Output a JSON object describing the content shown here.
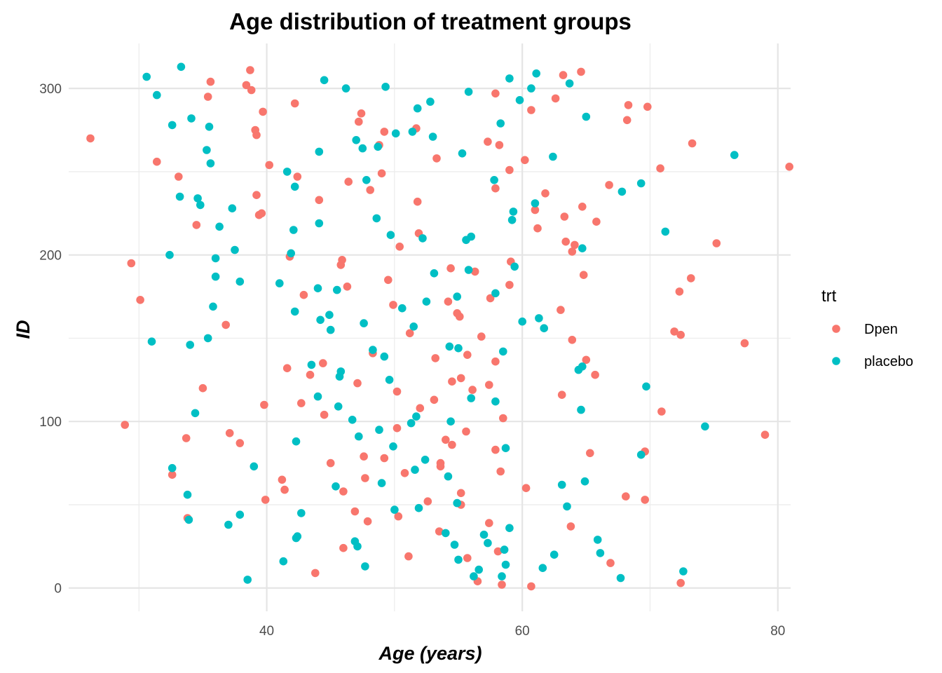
{
  "chart_data": {
    "type": "scatter",
    "title": "Age distribution of treatment groups",
    "xlabel": "Age (years)",
    "ylabel": "ID",
    "xlim": [
      24.5,
      81.0
    ],
    "ylim": [
      -14,
      327
    ],
    "x_ticks": [
      40,
      60,
      80
    ],
    "y_ticks": [
      0,
      100,
      200,
      300
    ],
    "x_minor_ticks": [
      30,
      50,
      70
    ],
    "y_minor_ticks": [
      50,
      150,
      250
    ],
    "grid": true,
    "legend": {
      "title": "trt",
      "placement": "right"
    },
    "series": [
      {
        "name": "Dpen",
        "color": "#F8766D",
        "points": [
          [
            26.2,
            270
          ],
          [
            28.9,
            98
          ],
          [
            29.4,
            195
          ],
          [
            30.1,
            173
          ],
          [
            31.4,
            256
          ],
          [
            32.6,
            68
          ],
          [
            33.1,
            247
          ],
          [
            33.7,
            90
          ],
          [
            33.8,
            42
          ],
          [
            35.0,
            120
          ],
          [
            34.5,
            218
          ],
          [
            35.4,
            295
          ],
          [
            35.6,
            304
          ],
          [
            36.8,
            158
          ],
          [
            37.1,
            93
          ],
          [
            37.9,
            87
          ],
          [
            38.4,
            302
          ],
          [
            38.7,
            311
          ],
          [
            38.8,
            299
          ],
          [
            39.1,
            275
          ],
          [
            39.2,
            272
          ],
          [
            39.2,
            236
          ],
          [
            39.4,
            224
          ],
          [
            39.6,
            225
          ],
          [
            39.7,
            286
          ],
          [
            39.8,
            110
          ],
          [
            39.9,
            53
          ],
          [
            40.2,
            254
          ],
          [
            41.2,
            65
          ],
          [
            41.4,
            59
          ],
          [
            41.6,
            132
          ],
          [
            41.8,
            199
          ],
          [
            42.2,
            291
          ],
          [
            42.4,
            247
          ],
          [
            42.7,
            111
          ],
          [
            42.9,
            176
          ],
          [
            43.4,
            128
          ],
          [
            43.8,
            9
          ],
          [
            44.1,
            233
          ],
          [
            44.4,
            135
          ],
          [
            44.5,
            104
          ],
          [
            45.0,
            75
          ],
          [
            45.8,
            194
          ],
          [
            45.9,
            197
          ],
          [
            46.0,
            58
          ],
          [
            46.0,
            24
          ],
          [
            46.3,
            181
          ],
          [
            46.4,
            244
          ],
          [
            46.9,
            46
          ],
          [
            47.1,
            123
          ],
          [
            47.2,
            280
          ],
          [
            47.4,
            285
          ],
          [
            47.6,
            79
          ],
          [
            47.7,
            66
          ],
          [
            47.9,
            40
          ],
          [
            48.1,
            239
          ],
          [
            48.3,
            141
          ],
          [
            48.8,
            266
          ],
          [
            49.0,
            249
          ],
          [
            49.2,
            274
          ],
          [
            49.2,
            78
          ],
          [
            49.5,
            185
          ],
          [
            49.9,
            170
          ],
          [
            50.2,
            118
          ],
          [
            50.2,
            96
          ],
          [
            50.3,
            43
          ],
          [
            50.4,
            205
          ],
          [
            50.8,
            69
          ],
          [
            51.1,
            19
          ],
          [
            51.2,
            153
          ],
          [
            51.7,
            276
          ],
          [
            51.8,
            232
          ],
          [
            51.9,
            213
          ],
          [
            52.0,
            108
          ],
          [
            52.6,
            52
          ],
          [
            53.1,
            113
          ],
          [
            53.2,
            138
          ],
          [
            53.3,
            258
          ],
          [
            53.5,
            34
          ],
          [
            53.6,
            75
          ],
          [
            53.6,
            73
          ],
          [
            54.0,
            89
          ],
          [
            54.2,
            172
          ],
          [
            54.4,
            192
          ],
          [
            54.5,
            86
          ],
          [
            54.5,
            124
          ],
          [
            54.9,
            165
          ],
          [
            55.1,
            163
          ],
          [
            55.2,
            126
          ],
          [
            55.2,
            57
          ],
          [
            55.2,
            50
          ],
          [
            55.6,
            94
          ],
          [
            55.7,
            140
          ],
          [
            55.7,
            18
          ],
          [
            56.1,
            119
          ],
          [
            56.3,
            190
          ],
          [
            56.5,
            4
          ],
          [
            56.8,
            151
          ],
          [
            57.3,
            268
          ],
          [
            57.4,
            122
          ],
          [
            57.4,
            39
          ],
          [
            57.5,
            174
          ],
          [
            57.9,
            297
          ],
          [
            57.9,
            240
          ],
          [
            57.9,
            136
          ],
          [
            57.9,
            83
          ],
          [
            58.1,
            22
          ],
          [
            58.2,
            266
          ],
          [
            58.3,
            70
          ],
          [
            58.4,
            2
          ],
          [
            58.5,
            102
          ],
          [
            59.0,
            251
          ],
          [
            59.0,
            182
          ],
          [
            59.1,
            196
          ],
          [
            60.2,
            257
          ],
          [
            60.3,
            60
          ],
          [
            60.7,
            287
          ],
          [
            60.7,
            1
          ],
          [
            61.0,
            227
          ],
          [
            61.2,
            216
          ],
          [
            61.8,
            237
          ],
          [
            62.6,
            294
          ],
          [
            63.0,
            167
          ],
          [
            63.1,
            116
          ],
          [
            63.2,
            308
          ],
          [
            63.3,
            223
          ],
          [
            63.4,
            208
          ],
          [
            63.8,
            37
          ],
          [
            63.9,
            202
          ],
          [
            63.9,
            149
          ],
          [
            64.1,
            206
          ],
          [
            64.6,
            310
          ],
          [
            64.7,
            229
          ],
          [
            64.8,
            188
          ],
          [
            65.0,
            137
          ],
          [
            65.3,
            81
          ],
          [
            65.7,
            128
          ],
          [
            65.8,
            220
          ],
          [
            66.8,
            242
          ],
          [
            66.9,
            15
          ],
          [
            68.1,
            55
          ],
          [
            68.2,
            281
          ],
          [
            68.3,
            290
          ],
          [
            69.6,
            82
          ],
          [
            69.6,
            53
          ],
          [
            69.8,
            289
          ],
          [
            70.8,
            252
          ],
          [
            70.9,
            106
          ],
          [
            71.9,
            154
          ],
          [
            72.3,
            178
          ],
          [
            72.4,
            152
          ],
          [
            72.4,
            3
          ],
          [
            73.2,
            186
          ],
          [
            73.3,
            267
          ],
          [
            75.2,
            207
          ],
          [
            77.4,
            147
          ],
          [
            79.0,
            92
          ],
          [
            80.9,
            253
          ]
        ]
      },
      {
        "name": "placebo",
        "color": "#00BFC4",
        "points": [
          [
            30.6,
            307
          ],
          [
            31.0,
            148
          ],
          [
            31.4,
            296
          ],
          [
            32.4,
            200
          ],
          [
            32.6,
            72
          ],
          [
            32.6,
            278
          ],
          [
            33.2,
            235
          ],
          [
            33.3,
            313
          ],
          [
            33.8,
            56
          ],
          [
            33.9,
            41
          ],
          [
            34.0,
            146
          ],
          [
            34.1,
            282
          ],
          [
            34.4,
            105
          ],
          [
            34.6,
            234
          ],
          [
            34.8,
            230
          ],
          [
            35.3,
            263
          ],
          [
            35.4,
            150
          ],
          [
            35.5,
            277
          ],
          [
            35.6,
            255
          ],
          [
            35.8,
            169
          ],
          [
            36.0,
            198
          ],
          [
            36.0,
            187
          ],
          [
            36.3,
            217
          ],
          [
            37.0,
            38
          ],
          [
            37.3,
            228
          ],
          [
            37.5,
            203
          ],
          [
            37.9,
            184
          ],
          [
            37.9,
            44
          ],
          [
            38.5,
            5
          ],
          [
            39.0,
            73
          ],
          [
            41.0,
            183
          ],
          [
            41.3,
            16
          ],
          [
            41.6,
            250
          ],
          [
            41.9,
            201
          ],
          [
            42.1,
            215
          ],
          [
            42.2,
            166
          ],
          [
            42.2,
            241
          ],
          [
            42.3,
            88
          ],
          [
            42.3,
            30
          ],
          [
            42.4,
            31
          ],
          [
            42.7,
            45
          ],
          [
            43.5,
            134
          ],
          [
            44.0,
            180
          ],
          [
            44.0,
            115
          ],
          [
            44.1,
            262
          ],
          [
            44.1,
            219
          ],
          [
            44.2,
            161
          ],
          [
            44.5,
            305
          ],
          [
            44.9,
            164
          ],
          [
            45.0,
            155
          ],
          [
            45.4,
            61
          ],
          [
            45.5,
            179
          ],
          [
            45.6,
            109
          ],
          [
            45.7,
            127
          ],
          [
            45.8,
            130
          ],
          [
            46.2,
            300
          ],
          [
            46.7,
            101
          ],
          [
            46.9,
            28
          ],
          [
            47.0,
            269
          ],
          [
            47.1,
            25
          ],
          [
            47.2,
            91
          ],
          [
            47.5,
            264
          ],
          [
            47.6,
            159
          ],
          [
            47.7,
            13
          ],
          [
            47.8,
            245
          ],
          [
            48.3,
            143
          ],
          [
            48.6,
            222
          ],
          [
            48.7,
            265
          ],
          [
            48.8,
            95
          ],
          [
            49.0,
            63
          ],
          [
            49.2,
            139
          ],
          [
            49.3,
            301
          ],
          [
            49.6,
            125
          ],
          [
            49.7,
            212
          ],
          [
            49.9,
            85
          ],
          [
            50.0,
            47
          ],
          [
            50.1,
            273
          ],
          [
            50.6,
            168
          ],
          [
            51.3,
            99
          ],
          [
            51.4,
            274
          ],
          [
            51.5,
            157
          ],
          [
            51.6,
            71
          ],
          [
            51.7,
            103
          ],
          [
            51.8,
            288
          ],
          [
            51.9,
            48
          ],
          [
            52.2,
            210
          ],
          [
            52.4,
            77
          ],
          [
            52.5,
            172
          ],
          [
            52.8,
            292
          ],
          [
            53.0,
            271
          ],
          [
            53.1,
            189
          ],
          [
            54.0,
            33
          ],
          [
            54.2,
            67
          ],
          [
            54.3,
            145
          ],
          [
            54.4,
            100
          ],
          [
            54.7,
            26
          ],
          [
            54.9,
            51
          ],
          [
            54.9,
            175
          ],
          [
            55.0,
            17
          ],
          [
            55.0,
            144
          ],
          [
            55.3,
            261
          ],
          [
            55.6,
            209
          ],
          [
            55.8,
            191
          ],
          [
            55.8,
            298
          ],
          [
            56.0,
            114
          ],
          [
            56.0,
            211
          ],
          [
            56.2,
            7
          ],
          [
            56.6,
            11
          ],
          [
            57.0,
            32
          ],
          [
            57.3,
            27
          ],
          [
            57.8,
            245
          ],
          [
            57.9,
            177
          ],
          [
            57.9,
            112
          ],
          [
            58.3,
            279
          ],
          [
            58.4,
            7
          ],
          [
            58.5,
            142
          ],
          [
            58.6,
            23
          ],
          [
            58.7,
            84
          ],
          [
            58.7,
            14
          ],
          [
            59.0,
            306
          ],
          [
            59.0,
            36
          ],
          [
            59.2,
            221
          ],
          [
            59.3,
            226
          ],
          [
            59.4,
            193
          ],
          [
            59.8,
            293
          ],
          [
            60.0,
            160
          ],
          [
            60.7,
            300
          ],
          [
            61.0,
            231
          ],
          [
            61.1,
            309
          ],
          [
            61.3,
            162
          ],
          [
            61.6,
            12
          ],
          [
            61.7,
            156
          ],
          [
            62.4,
            259
          ],
          [
            62.5,
            20
          ],
          [
            63.1,
            62
          ],
          [
            63.5,
            49
          ],
          [
            63.7,
            303
          ],
          [
            64.4,
            131
          ],
          [
            64.6,
            107
          ],
          [
            64.7,
            133
          ],
          [
            64.7,
            204
          ],
          [
            64.9,
            64
          ],
          [
            65.0,
            283
          ],
          [
            65.9,
            29
          ],
          [
            66.1,
            21
          ],
          [
            67.7,
            6
          ],
          [
            67.8,
            238
          ],
          [
            69.3,
            243
          ],
          [
            69.3,
            80
          ],
          [
            69.7,
            121
          ],
          [
            71.2,
            214
          ],
          [
            72.6,
            10
          ],
          [
            74.3,
            97
          ],
          [
            76.6,
            260
          ]
        ]
      }
    ]
  }
}
